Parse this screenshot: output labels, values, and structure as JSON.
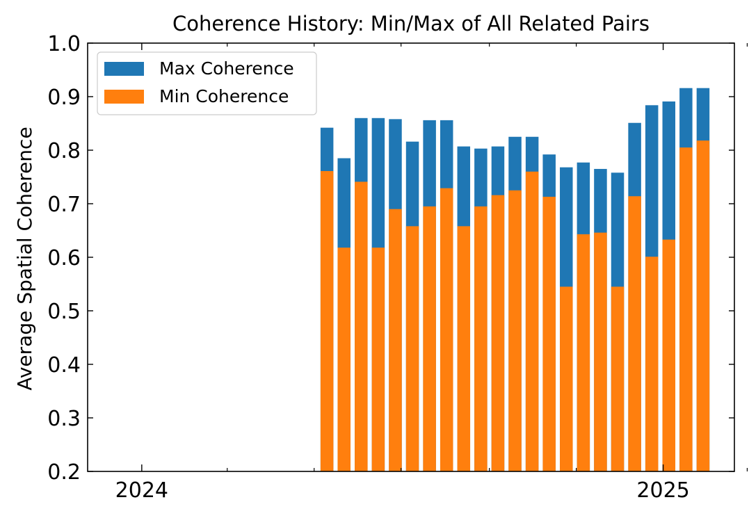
{
  "chart_data": {
    "type": "bar",
    "title": "Coherence History: Min/Max of All Related Pairs",
    "xlabel": "",
    "ylabel": "Average Spatial Coherence",
    "ylim": [
      0.2,
      1.0
    ],
    "yticks": [
      "0.2",
      "0.3",
      "0.4",
      "0.5",
      "0.6",
      "0.7",
      "0.8",
      "0.9",
      "1.0"
    ],
    "xlim": [
      "2023-11-24",
      "2025-02-20"
    ],
    "xticks": [
      {
        "date": "2024-01-01",
        "label": "2024"
      },
      {
        "date": "2025-01-01",
        "label": "2025"
      }
    ],
    "x_minor_ticks": [
      "2024-03-01",
      "2024-05-01",
      "2024-07-01",
      "2024-09-01",
      "2024-11-01",
      "2025-03-01"
    ],
    "legend": {
      "location": "upper-left",
      "order": [
        "Max Coherence",
        "Min Coherence"
      ]
    },
    "grid": false,
    "colors": {
      "max": "#1f77b4",
      "min": "#ff7f0e"
    },
    "dates": [
      "2024-05-10",
      "2024-05-22",
      "2024-06-03",
      "2024-06-15",
      "2024-06-27",
      "2024-07-09",
      "2024-07-21",
      "2024-08-02",
      "2024-08-14",
      "2024-08-26",
      "2024-09-07",
      "2024-09-19",
      "2024-10-01",
      "2024-10-13",
      "2024-10-25",
      "2024-11-06",
      "2024-11-18",
      "2024-11-30",
      "2024-12-12",
      "2024-12-24",
      "2025-01-05",
      "2025-01-17",
      "2025-01-29"
    ],
    "series": [
      {
        "name": "Max Coherence",
        "values": [
          0.842,
          0.785,
          0.86,
          0.86,
          0.858,
          0.816,
          0.856,
          0.856,
          0.807,
          0.803,
          0.807,
          0.825,
          0.825,
          0.792,
          0.768,
          0.777,
          0.765,
          0.758,
          0.851,
          0.884,
          0.891,
          0.916,
          0.916
        ]
      },
      {
        "name": "Min Coherence",
        "values": [
          0.761,
          0.618,
          0.741,
          0.618,
          0.69,
          0.658,
          0.695,
          0.729,
          0.658,
          0.695,
          0.716,
          0.725,
          0.76,
          0.713,
          0.545,
          0.643,
          0.646,
          0.545,
          0.714,
          0.601,
          0.633,
          0.805,
          0.818
        ]
      }
    ]
  }
}
